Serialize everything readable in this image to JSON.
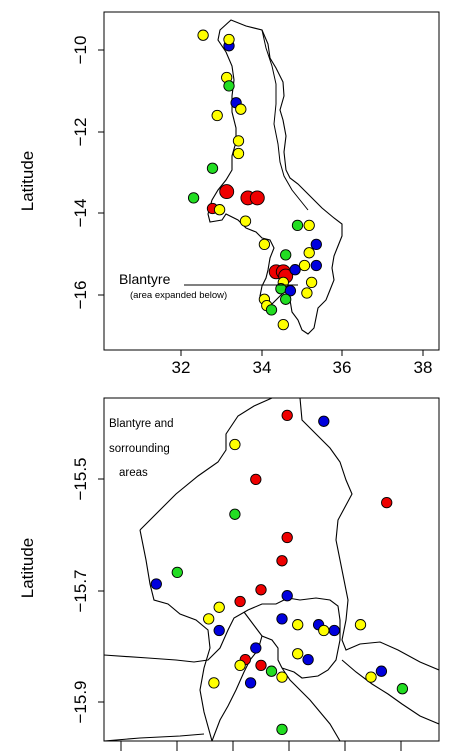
{
  "top_map": {
    "ylabel": "Latitude",
    "y_ticks": [
      "−10",
      "−12",
      "−14",
      "−16"
    ],
    "x_ticks": [
      "32",
      "34",
      "36",
      "38"
    ],
    "annotation_title": "Blantyre",
    "annotation_subtitle": "(area expanded below)"
  },
  "bottom_map": {
    "ylabel": "Latitude",
    "y_ticks": [
      "−15.5",
      "−15.7",
      "−15.9"
    ],
    "annotation_lines": [
      "Blantyre and",
      "sorrounding",
      "areas"
    ]
  },
  "colors": {
    "yellow": "#ffff00",
    "green": "#22dd22",
    "blue": "#0000dd",
    "red": "#ee0000"
  },
  "chart_data": [
    {
      "type": "scatter",
      "title": "",
      "xlabel": "",
      "ylabel": "Latitude",
      "xlim": [
        31.2,
        38.3
      ],
      "ylim": [
        -17.3,
        -9.3
      ],
      "points": [
        {
          "lon": 33.3,
          "lat": -9.85,
          "color": "yellow"
        },
        {
          "lon": 33.85,
          "lat": -10.1,
          "color": "blue"
        },
        {
          "lon": 33.85,
          "lat": -9.95,
          "color": "yellow"
        },
        {
          "lon": 33.8,
          "lat": -10.85,
          "color": "yellow"
        },
        {
          "lon": 33.85,
          "lat": -11.05,
          "color": "green"
        },
        {
          "lon": 34.0,
          "lat": -11.45,
          "color": "blue"
        },
        {
          "lon": 34.1,
          "lat": -11.6,
          "color": "yellow"
        },
        {
          "lon": 33.6,
          "lat": -11.75,
          "color": "yellow"
        },
        {
          "lon": 34.05,
          "lat": -12.35,
          "color": "yellow"
        },
        {
          "lon": 34.05,
          "lat": -12.65,
          "color": "yellow"
        },
        {
          "lon": 33.5,
          "lat": -13.0,
          "color": "green"
        },
        {
          "lon": 33.8,
          "lat": -13.55,
          "color": "red",
          "size": "large"
        },
        {
          "lon": 34.25,
          "lat": -13.7,
          "color": "red",
          "size": "large"
        },
        {
          "lon": 34.45,
          "lat": -13.7,
          "color": "red",
          "size": "large"
        },
        {
          "lon": 33.1,
          "lat": -13.7,
          "color": "green"
        },
        {
          "lon": 33.5,
          "lat": -13.95,
          "color": "red"
        },
        {
          "lon": 33.65,
          "lat": -13.98,
          "color": "yellow"
        },
        {
          "lon": 34.2,
          "lat": -14.25,
          "color": "yellow"
        },
        {
          "lon": 35.3,
          "lat": -14.35,
          "color": "green"
        },
        {
          "lon": 35.55,
          "lat": -14.35,
          "color": "yellow"
        },
        {
          "lon": 34.6,
          "lat": -14.8,
          "color": "yellow"
        },
        {
          "lon": 35.7,
          "lat": -14.8,
          "color": "blue"
        },
        {
          "lon": 35.55,
          "lat": -15.0,
          "color": "yellow"
        },
        {
          "lon": 35.05,
          "lat": -15.05,
          "color": "green"
        },
        {
          "lon": 35.7,
          "lat": -15.3,
          "color": "blue"
        },
        {
          "lon": 35.45,
          "lat": -15.3,
          "color": "yellow"
        },
        {
          "lon": 34.85,
          "lat": -15.45,
          "color": "red",
          "size": "large"
        },
        {
          "lon": 35.0,
          "lat": -15.45,
          "color": "red",
          "size": "large"
        },
        {
          "lon": 35.05,
          "lat": -15.55,
          "color": "red",
          "size": "large"
        },
        {
          "lon": 35.25,
          "lat": -15.4,
          "color": "blue"
        },
        {
          "lon": 35.0,
          "lat": -15.7,
          "color": "yellow"
        },
        {
          "lon": 34.95,
          "lat": -15.85,
          "color": "green"
        },
        {
          "lon": 35.15,
          "lat": -15.9,
          "color": "blue"
        },
        {
          "lon": 35.6,
          "lat": -15.7,
          "color": "yellow"
        },
        {
          "lon": 35.5,
          "lat": -15.95,
          "color": "yellow"
        },
        {
          "lon": 34.6,
          "lat": -16.1,
          "color": "yellow"
        },
        {
          "lon": 35.05,
          "lat": -16.1,
          "color": "green"
        },
        {
          "lon": 34.65,
          "lat": -16.25,
          "color": "yellow"
        },
        {
          "lon": 34.75,
          "lat": -16.35,
          "color": "green"
        },
        {
          "lon": 35.0,
          "lat": -16.7,
          "color": "yellow"
        }
      ]
    },
    {
      "type": "scatter",
      "title": "",
      "xlabel": "",
      "ylabel": "Latitude",
      "xlim": [
        34.63,
        35.27
      ],
      "ylim": [
        -15.97,
        -15.38
      ],
      "points": [
        {
          "lon": 34.98,
          "lat": -15.41,
          "color": "red"
        },
        {
          "lon": 35.05,
          "lat": -15.42,
          "color": "blue"
        },
        {
          "lon": 34.88,
          "lat": -15.46,
          "color": "yellow"
        },
        {
          "lon": 34.92,
          "lat": -15.52,
          "color": "red"
        },
        {
          "lon": 35.17,
          "lat": -15.56,
          "color": "red"
        },
        {
          "lon": 34.88,
          "lat": -15.58,
          "color": "green"
        },
        {
          "lon": 34.98,
          "lat": -15.62,
          "color": "red"
        },
        {
          "lon": 34.97,
          "lat": -15.66,
          "color": "red"
        },
        {
          "lon": 34.77,
          "lat": -15.68,
          "color": "green"
        },
        {
          "lon": 34.73,
          "lat": -15.7,
          "color": "blue"
        },
        {
          "lon": 34.93,
          "lat": -15.71,
          "color": "red"
        },
        {
          "lon": 34.89,
          "lat": -15.73,
          "color": "red"
        },
        {
          "lon": 34.85,
          "lat": -15.74,
          "color": "yellow"
        },
        {
          "lon": 34.98,
          "lat": -15.72,
          "color": "blue"
        },
        {
          "lon": 34.97,
          "lat": -15.76,
          "color": "blue"
        },
        {
          "lon": 35.0,
          "lat": -15.77,
          "color": "yellow"
        },
        {
          "lon": 35.04,
          "lat": -15.77,
          "color": "blue"
        },
        {
          "lon": 35.07,
          "lat": -15.78,
          "color": "blue"
        },
        {
          "lon": 35.05,
          "lat": -15.78,
          "color": "yellow"
        },
        {
          "lon": 35.12,
          "lat": -15.77,
          "color": "yellow"
        },
        {
          "lon": 34.85,
          "lat": -15.78,
          "color": "blue"
        },
        {
          "lon": 34.83,
          "lat": -15.76,
          "color": "yellow"
        },
        {
          "lon": 35.0,
          "lat": -15.82,
          "color": "yellow"
        },
        {
          "lon": 34.92,
          "lat": -15.81,
          "color": "blue"
        },
        {
          "lon": 34.9,
          "lat": -15.83,
          "color": "red"
        },
        {
          "lon": 34.93,
          "lat": -15.84,
          "color": "red"
        },
        {
          "lon": 34.89,
          "lat": -15.84,
          "color": "yellow"
        },
        {
          "lon": 34.97,
          "lat": -15.86,
          "color": "yellow"
        },
        {
          "lon": 35.02,
          "lat": -15.83,
          "color": "blue"
        },
        {
          "lon": 34.95,
          "lat": -15.85,
          "color": "green"
        },
        {
          "lon": 34.84,
          "lat": -15.87,
          "color": "yellow"
        },
        {
          "lon": 35.14,
          "lat": -15.86,
          "color": "yellow"
        },
        {
          "lon": 35.16,
          "lat": -15.85,
          "color": "blue"
        },
        {
          "lon": 35.2,
          "lat": -15.88,
          "color": "green"
        },
        {
          "lon": 34.97,
          "lat": -15.95,
          "color": "green"
        },
        {
          "lon": 34.91,
          "lat": -15.87,
          "color": "blue"
        }
      ]
    }
  ]
}
